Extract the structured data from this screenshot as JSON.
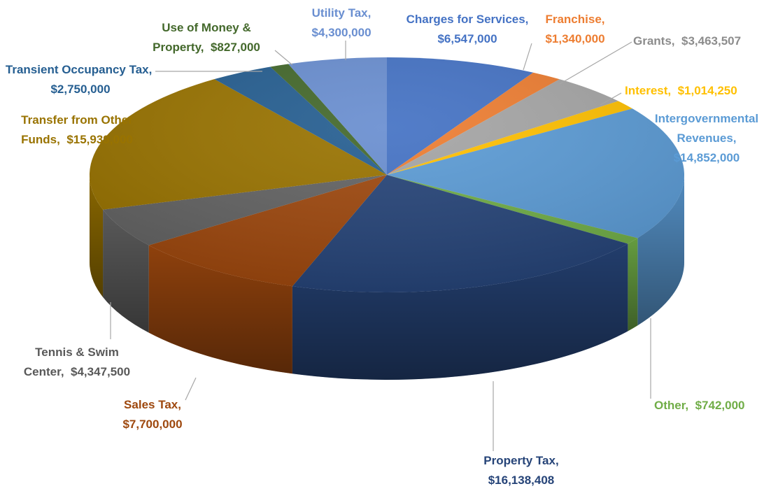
{
  "chart_data": {
    "type": "pie3d",
    "categories": [
      "Charges for Services,",
      "Franchise,",
      "Grants,",
      "Interest,",
      "Intergovernmental Revenues,",
      "Other,",
      "Property Tax,",
      "Sales Tax,",
      "Tennis & Swim Center,",
      "Transfer from Other Funds,",
      "Transient Occupancy Tax,",
      "Use of Money & Property,",
      "Utility Tax,"
    ],
    "values": [
      6547000,
      1340000,
      3463507,
      1014250,
      14852000,
      742000,
      16138408,
      7700000,
      4347500,
      15939000,
      2750000,
      827000,
      4300000
    ],
    "value_labels": [
      "$6,547,000",
      "$1,340,000",
      "$3,463,507",
      "$1,014,250",
      "$14,852,000",
      "$742,000",
      "$16,138,408",
      "$7,700,000",
      "$4,347,500",
      "$15,939,000",
      "$2,750,000",
      "$827,000",
      "$4,300,000"
    ],
    "colors": [
      "#4472c4",
      "#ed7d31",
      "#a5a5a5",
      "#ffc000",
      "#5b9bd5",
      "#70ad47",
      "#264478",
      "#9e480e",
      "#636363",
      "#997300",
      "#255e91",
      "#43682b",
      "#698ed0"
    ]
  }
}
